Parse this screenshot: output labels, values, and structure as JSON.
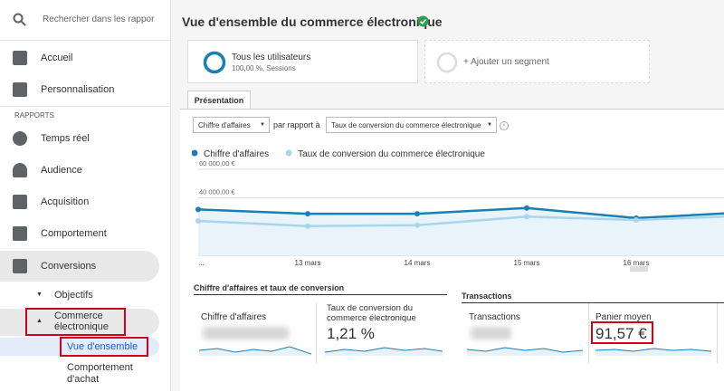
{
  "sidebar": {
    "search": "Rechercher dans les rappor",
    "items": [
      "Accueil",
      "Personnalisation"
    ],
    "section": "RAPPORTS",
    "reports": [
      "Temps réel",
      "Audience",
      "Acquisition",
      "Comportement",
      "Conversions"
    ],
    "sub_items": [
      "Objectifs",
      "Commerce électronique",
      "Vue d'ensemble",
      "Comportement d'achat"
    ]
  },
  "header": {
    "title": "Vue d'ensemble du commerce électronique"
  },
  "segments": {
    "name": "Tous les utilisateurs",
    "detail": "100,00 %, Sessions",
    "add": "+ Ajouter un segment"
  },
  "tab": "Présentation",
  "controls": {
    "metric": "Chiffre d'affaires",
    "compare_label": "par rapport à",
    "compare_metric": "Taux de conversion du commerce électronique"
  },
  "chart": {
    "type": "line",
    "categories": [
      "...",
      "13 mars",
      "14 mars",
      "15 mars",
      "16 mars",
      null
    ],
    "series": [
      {
        "name": "Chiffre d'affaires",
        "color": "#1a7fb5",
        "values": [
          32000,
          29000,
          29000,
          33000,
          26000,
          30000
        ]
      },
      {
        "name": "Taux de conversion du commerce électronique",
        "color": "#a9d6ea",
        "axis": "y2",
        "values": [
          1.2,
          1.02,
          1.05,
          1.35,
          1.23,
          1.38
        ]
      }
    ],
    "ylim": [
      0,
      60000
    ],
    "yticks": [
      {
        "value": 20000,
        "label": "20 000,00 €"
      },
      {
        "value": 40000,
        "label": "40 000,00 €"
      },
      {
        "value": 60000,
        "label": "60 000,00 €"
      }
    ],
    "y2lim": [
      0,
      3
    ],
    "grid": true
  },
  "sections": [
    {
      "title": "Chiffre d'affaires et taux de conversion",
      "cards": [
        {
          "label": "Chiffre d'affaires"
        },
        {
          "label": "Taux de conversion du commerce électronique",
          "value": "1,21 %"
        }
      ]
    },
    {
      "title": "Transactions",
      "cards": [
        {
          "label": "Transactions"
        },
        {
          "label": "Panier moyen",
          "value": "91,57 €"
        }
      ]
    }
  ]
}
